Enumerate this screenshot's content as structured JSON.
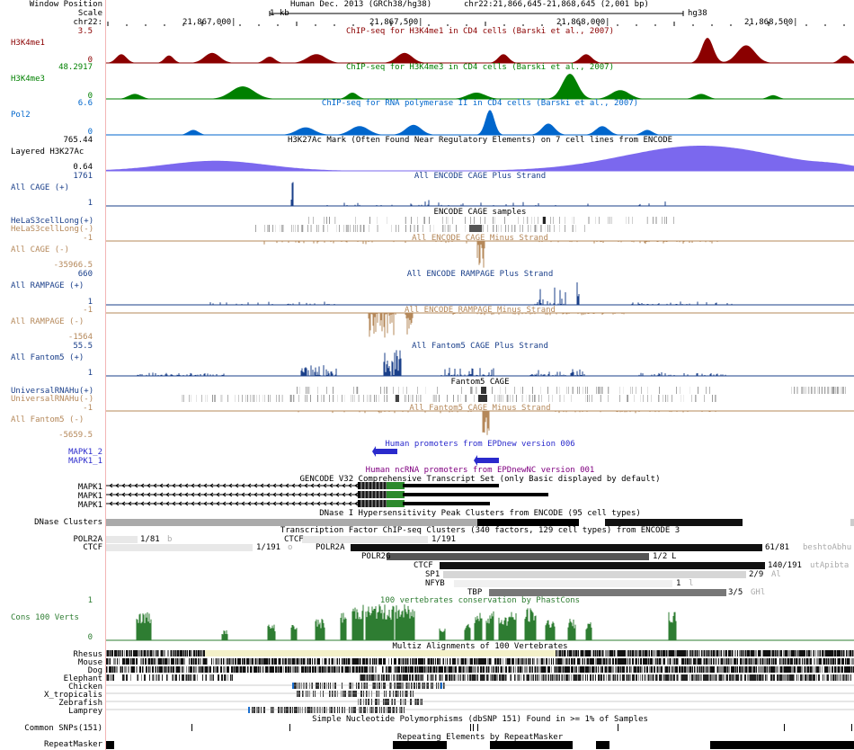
{
  "header": {
    "window_position_label": "Window Position",
    "scale_label": "Scale",
    "chrom_label": "chr22:",
    "assembly": "Human Dec. 2013 (GRCh38/hg38)",
    "position": "chr22:21,866,645-21,868,645 (2,001 bp)",
    "scale_value": "1 kb",
    "scale_assembly": "hg38",
    "ticks": [
      "21,867,000|",
      "21,867,500|",
      "21,868,000|",
      "21,868,500|"
    ]
  },
  "colors": {
    "h3k4me1": "#8b0000",
    "h3k4me3": "#008000",
    "pol2": "#0066cc",
    "layered": "#7b68ee",
    "cage_plus": "#1a3f8a",
    "cage_minus": "#b5885a",
    "epd": "#2a2acc",
    "ncrna": "#800080",
    "gencode": "#000000",
    "cons": "#2e7d32"
  },
  "tracks": {
    "h3k4me1": {
      "label": "H3K4me1",
      "max": "3.5",
      "zero": "0",
      "title": "ChIP-seq for H3K4me1 in CD4 cells (Barski et al., 2007)"
    },
    "h3k4me3": {
      "label": "H3K4me3",
      "max": "48.2917",
      "zero": "0",
      "title": "ChIP-seq for H3K4me3 in CD4 cells (Barski et al., 2007)"
    },
    "pol2": {
      "label": "Pol2",
      "max": "6.6",
      "zero": "0",
      "title": "ChIP-seq for RNA polymerase II in CD4 cells (Barski et al., 2007)"
    },
    "layered": {
      "label": "Layered H3K27Ac",
      "max": "765.44",
      "min": "0.64",
      "title": "H3K27Ac Mark (Often Found Near Regulatory Elements) on 7 cell lines from ENCODE"
    },
    "cage_plus": {
      "label": "All CAGE (+)",
      "max": "1761",
      "one": "1",
      "title": "All ENCODE CAGE Plus Strand"
    },
    "cage_samples": {
      "title": "ENCODE CAGE samples",
      "row1": "HeLaS3cellLong(+)",
      "row2": "HeLaS3cellLong(-)"
    },
    "cage_minus": {
      "label": "All CAGE (-)",
      "neg": "-1",
      "min": "-35966.5",
      "title": "All ENCODE CAGE Minus Strand"
    },
    "ramp_plus": {
      "label": "All RAMPAGE (+)",
      "max": "660",
      "one": "1",
      "title": "All ENCODE RAMPAGE Plus Strand"
    },
    "ramp_minus": {
      "label": "All RAMPAGE (-)",
      "neg": "-1",
      "min": "-1564",
      "title": "All ENCODE RAMPAGE Minus Strand"
    },
    "f5_plus": {
      "label": "All Fantom5 (+)",
      "max": "55.5",
      "one": "1",
      "title": "All Fantom5 CAGE Plus Strand"
    },
    "f5_samples": {
      "title": "Fantom5 CAGE",
      "row1": "UniversalRNAHu(+)",
      "row2": "UniversalRNAHu(-)"
    },
    "f5_minus": {
      "label": "All Fantom5 (-)",
      "neg": "-1",
      "min": "-5659.5",
      "title": "All Fantom5 CAGE Minus Strand"
    },
    "epd": {
      "title": "Human promoters from EPDnew version 006",
      "row1": "MAPK1_2",
      "row2": "MAPK1_1"
    },
    "epdnc": {
      "title": "Human ncRNA promoters from EPDnewNC version 001"
    },
    "gencode": {
      "title": "GENCODE V32 Comprehensive Transcript Set (only Basic displayed by default)",
      "rows": [
        "MAPK1",
        "MAPK1",
        "MAPK1"
      ]
    },
    "dnase": {
      "label": "DNase Clusters",
      "title": "DNase I Hypersensitivity Peak Clusters from ENCODE (95 cell types)"
    },
    "tfbs": {
      "title": "Transcription Factor ChIP-seq Clusters (340 factors, 129 cell types) from ENCODE 3",
      "items": [
        {
          "name": "POLR2A",
          "score": "1/81",
          "extra": "b"
        },
        {
          "name": "CTCF",
          "score": "1/191",
          "extra": ""
        },
        {
          "name": "CTCF",
          "score": "1/191",
          "extra": "o"
        },
        {
          "name": "POLR2A",
          "score": "61/81",
          "extra": "beshtoAbhu"
        },
        {
          "name": "POLR2G",
          "score": "1/2",
          "extra": "L"
        },
        {
          "name": "CTCF",
          "score": "140/191",
          "extra": "utApibta"
        },
        {
          "name": "SP1",
          "score": "2/9",
          "extra": "Al"
        },
        {
          "name": "NFYB",
          "score": "1",
          "extra": "l"
        },
        {
          "name": "TBP",
          "score": "3/5",
          "extra": "GHl"
        }
      ]
    },
    "cons": {
      "label": "Cons 100 Verts",
      "max": "1",
      "zero": "0",
      "title": "100 vertebrates conservation by PhastCons"
    },
    "multiz": {
      "title": "Multiz Alignments of 100 Vertebrates",
      "species": [
        "Rhesus",
        "Mouse",
        "Dog",
        "Elephant",
        "Chicken",
        "X_tropicalis",
        "Zebrafish",
        "Lamprey"
      ]
    },
    "snp": {
      "label": "Common SNPs(151)",
      "title": "Simple Nucleotide Polymorphisms (dbSNP 151) Found in >= 1% of Samples"
    },
    "rmsk": {
      "label": "RepeatMasker",
      "title": "Repeating Elements by RepeatMasker"
    }
  }
}
